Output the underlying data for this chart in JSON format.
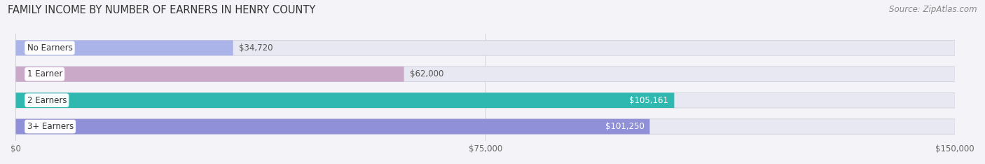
{
  "title": "FAMILY INCOME BY NUMBER OF EARNERS IN HENRY COUNTY",
  "source": "Source: ZipAtlas.com",
  "categories": [
    "No Earners",
    "1 Earner",
    "2 Earners",
    "3+ Earners"
  ],
  "values": [
    34720,
    62000,
    105161,
    101250
  ],
  "bar_colors": [
    "#aab4e8",
    "#c9a8c8",
    "#2eb8b0",
    "#9090d8"
  ],
  "label_colors": [
    "#444444",
    "#444444",
    "#ffffff",
    "#ffffff"
  ],
  "value_labels": [
    "$34,720",
    "$62,000",
    "$105,161",
    "$101,250"
  ],
  "value_inside": [
    false,
    false,
    true,
    true
  ],
  "bar_bg_color": "#e8e8f2",
  "xlim": [
    0,
    150000
  ],
  "xticks": [
    0,
    75000,
    150000
  ],
  "xticklabels": [
    "$0",
    "$75,000",
    "$150,000"
  ],
  "background_color": "#f4f4f8",
  "title_fontsize": 10.5,
  "source_fontsize": 8.5
}
